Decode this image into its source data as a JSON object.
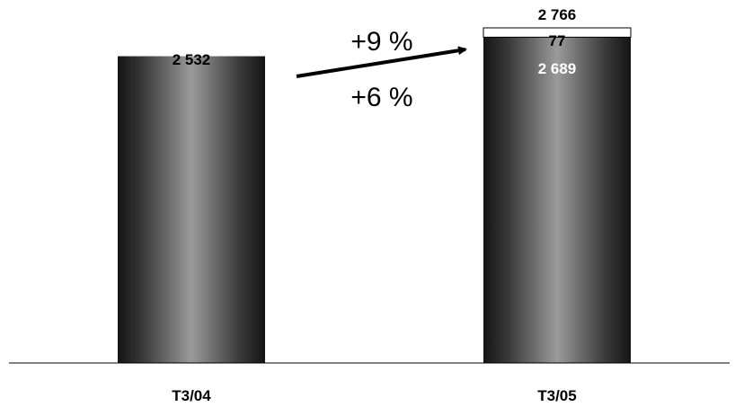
{
  "chart_data": {
    "type": "bar",
    "stacked": true,
    "categories": [
      "T3/04",
      "T3/05"
    ],
    "series": [
      {
        "values": [
          2532,
          2689
        ],
        "color": "#2a2a2a"
      },
      {
        "values": [
          0,
          77
        ],
        "color": "#ffffff"
      }
    ],
    "totals": [
      2532,
      2766
    ],
    "total_labels": [
      "2 532",
      "2 766"
    ],
    "segment_labels": {
      "base": [
        null,
        "2 689"
      ],
      "top": [
        null,
        "77"
      ]
    },
    "annotations": {
      "upper": "+9 %",
      "lower": "+6 %",
      "arrow": "from T3/04 toward T3/05"
    },
    "ylim": [
      0,
      2766
    ],
    "grid": false,
    "legend": "none"
  }
}
